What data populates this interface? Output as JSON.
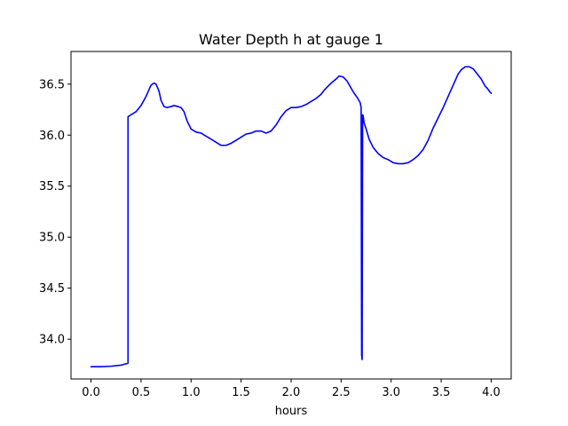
{
  "chart_data": {
    "type": "line",
    "title": "Water Depth h at gauge 1",
    "xlabel": "hours",
    "ylabel": "",
    "xlim": [
      -0.2,
      4.2
    ],
    "ylim": [
      33.61,
      36.82
    ],
    "x_ticks": [
      0.0,
      0.5,
      1.0,
      1.5,
      2.0,
      2.5,
      3.0,
      3.5,
      4.0
    ],
    "x_tick_labels": [
      "0.0",
      "0.5",
      "1.0",
      "1.5",
      "2.0",
      "2.5",
      "3.0",
      "3.5",
      "4.0"
    ],
    "y_ticks": [
      34.0,
      34.5,
      35.0,
      35.5,
      36.0,
      36.5
    ],
    "y_tick_labels": [
      "34.0",
      "34.5",
      "35.0",
      "35.5",
      "36.0",
      "36.5"
    ],
    "grid": false,
    "legend": "none",
    "series": [
      {
        "color": "#0000ff",
        "x": [
          0.0,
          0.1,
          0.2,
          0.3,
          0.37,
          0.37,
          0.4,
          0.45,
          0.5,
          0.55,
          0.6,
          0.63,
          0.65,
          0.68,
          0.7,
          0.73,
          0.76,
          0.8,
          0.83,
          0.87,
          0.9,
          0.93,
          0.96,
          1.0,
          1.05,
          1.1,
          1.15,
          1.2,
          1.25,
          1.3,
          1.35,
          1.4,
          1.45,
          1.5,
          1.55,
          1.6,
          1.65,
          1.7,
          1.75,
          1.8,
          1.85,
          1.9,
          1.95,
          2.0,
          2.05,
          2.1,
          2.15,
          2.2,
          2.25,
          2.3,
          2.33,
          2.36,
          2.4,
          2.45,
          2.48,
          2.52,
          2.56,
          2.6,
          2.63,
          2.66,
          2.69,
          2.7,
          2.705,
          2.71,
          2.715,
          2.72,
          2.73,
          2.75,
          2.78,
          2.82,
          2.87,
          2.92,
          2.97,
          3.02,
          3.07,
          3.12,
          3.17,
          3.22,
          3.27,
          3.32,
          3.37,
          3.42,
          3.47,
          3.52,
          3.57,
          3.62,
          3.67,
          3.7,
          3.74,
          3.78,
          3.82,
          3.86,
          3.9,
          3.94,
          3.96,
          3.99,
          4.0
        ],
        "y": [
          33.73,
          33.73,
          33.735,
          33.745,
          33.765,
          36.18,
          36.2,
          36.23,
          36.29,
          36.38,
          36.49,
          36.51,
          36.5,
          36.43,
          36.34,
          36.28,
          36.27,
          36.28,
          36.29,
          36.28,
          36.27,
          36.23,
          36.14,
          36.06,
          36.03,
          36.02,
          35.99,
          35.96,
          35.93,
          35.9,
          35.9,
          35.92,
          35.95,
          35.98,
          36.01,
          36.02,
          36.04,
          36.04,
          36.02,
          36.04,
          36.1,
          36.18,
          36.24,
          36.27,
          36.27,
          36.28,
          36.3,
          36.33,
          36.36,
          36.4,
          36.44,
          36.47,
          36.51,
          36.55,
          36.58,
          36.57,
          36.53,
          36.46,
          36.41,
          36.37,
          36.32,
          36.27,
          33.84,
          33.8,
          36.2,
          36.19,
          36.12,
          36.06,
          35.96,
          35.88,
          35.82,
          35.78,
          35.76,
          35.73,
          35.72,
          35.72,
          35.73,
          35.76,
          35.8,
          35.86,
          35.95,
          36.07,
          36.17,
          36.27,
          36.38,
          36.49,
          36.6,
          36.64,
          36.67,
          36.67,
          36.65,
          36.6,
          36.55,
          36.48,
          36.46,
          36.42,
          36.41
        ]
      }
    ]
  }
}
